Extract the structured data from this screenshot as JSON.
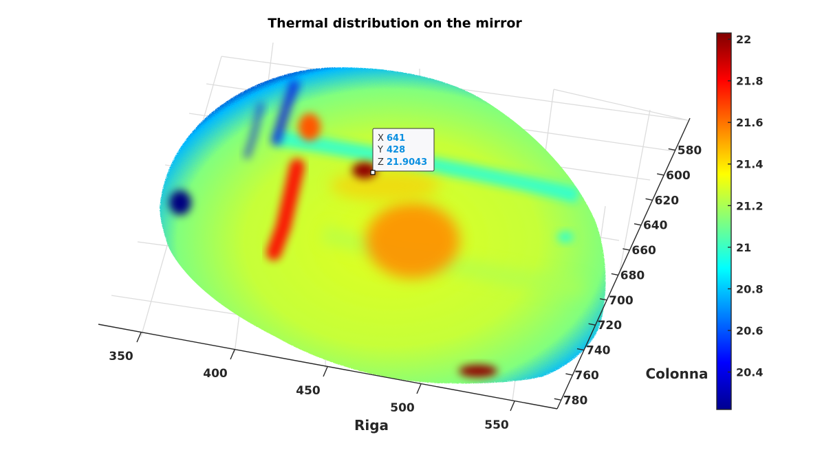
{
  "chart_data": {
    "type": "heatmap",
    "title": "Thermal distribution on the mirror",
    "xlabel": "Riga",
    "ylabel": "Colonna",
    "x_ticks": [
      "350",
      "400",
      "450",
      "500",
      "550"
    ],
    "y_ticks": [
      "580",
      "600",
      "620",
      "640",
      "660",
      "680",
      "700",
      "720",
      "740",
      "760",
      "780"
    ],
    "colorbar": {
      "colormap": "jet",
      "range": [
        20.22,
        22.03
      ],
      "ticks": [
        "20.4",
        "20.6",
        "20.8",
        "21",
        "21.2",
        "21.4",
        "21.6",
        "21.8",
        "22"
      ]
    },
    "regions": [
      {
        "name": "mirror-surface",
        "value": 21.25
      },
      {
        "name": "cold-rim",
        "value": 20.5
      },
      {
        "name": "vertical-hot-stripe",
        "value": 21.8
      },
      {
        "name": "top-hot-spot",
        "value": 21.65
      },
      {
        "name": "central-warm-blob",
        "value": 21.55
      },
      {
        "name": "bottom-hot-spot",
        "value": 22.0
      },
      {
        "name": "cool-crossbar",
        "value": 20.95
      },
      {
        "name": "cold-streaks",
        "value": 20.4
      }
    ],
    "data_tip": {
      "x_label": "X",
      "x_value": "641",
      "y_label": "Y",
      "y_value": "428",
      "z_label": "Z",
      "z_value": "21.9043"
    }
  },
  "colors": {
    "background": "#ffffff",
    "axis": "#262626",
    "grid": "#dcdcdc",
    "datatip_value": "#0a8fe0"
  }
}
